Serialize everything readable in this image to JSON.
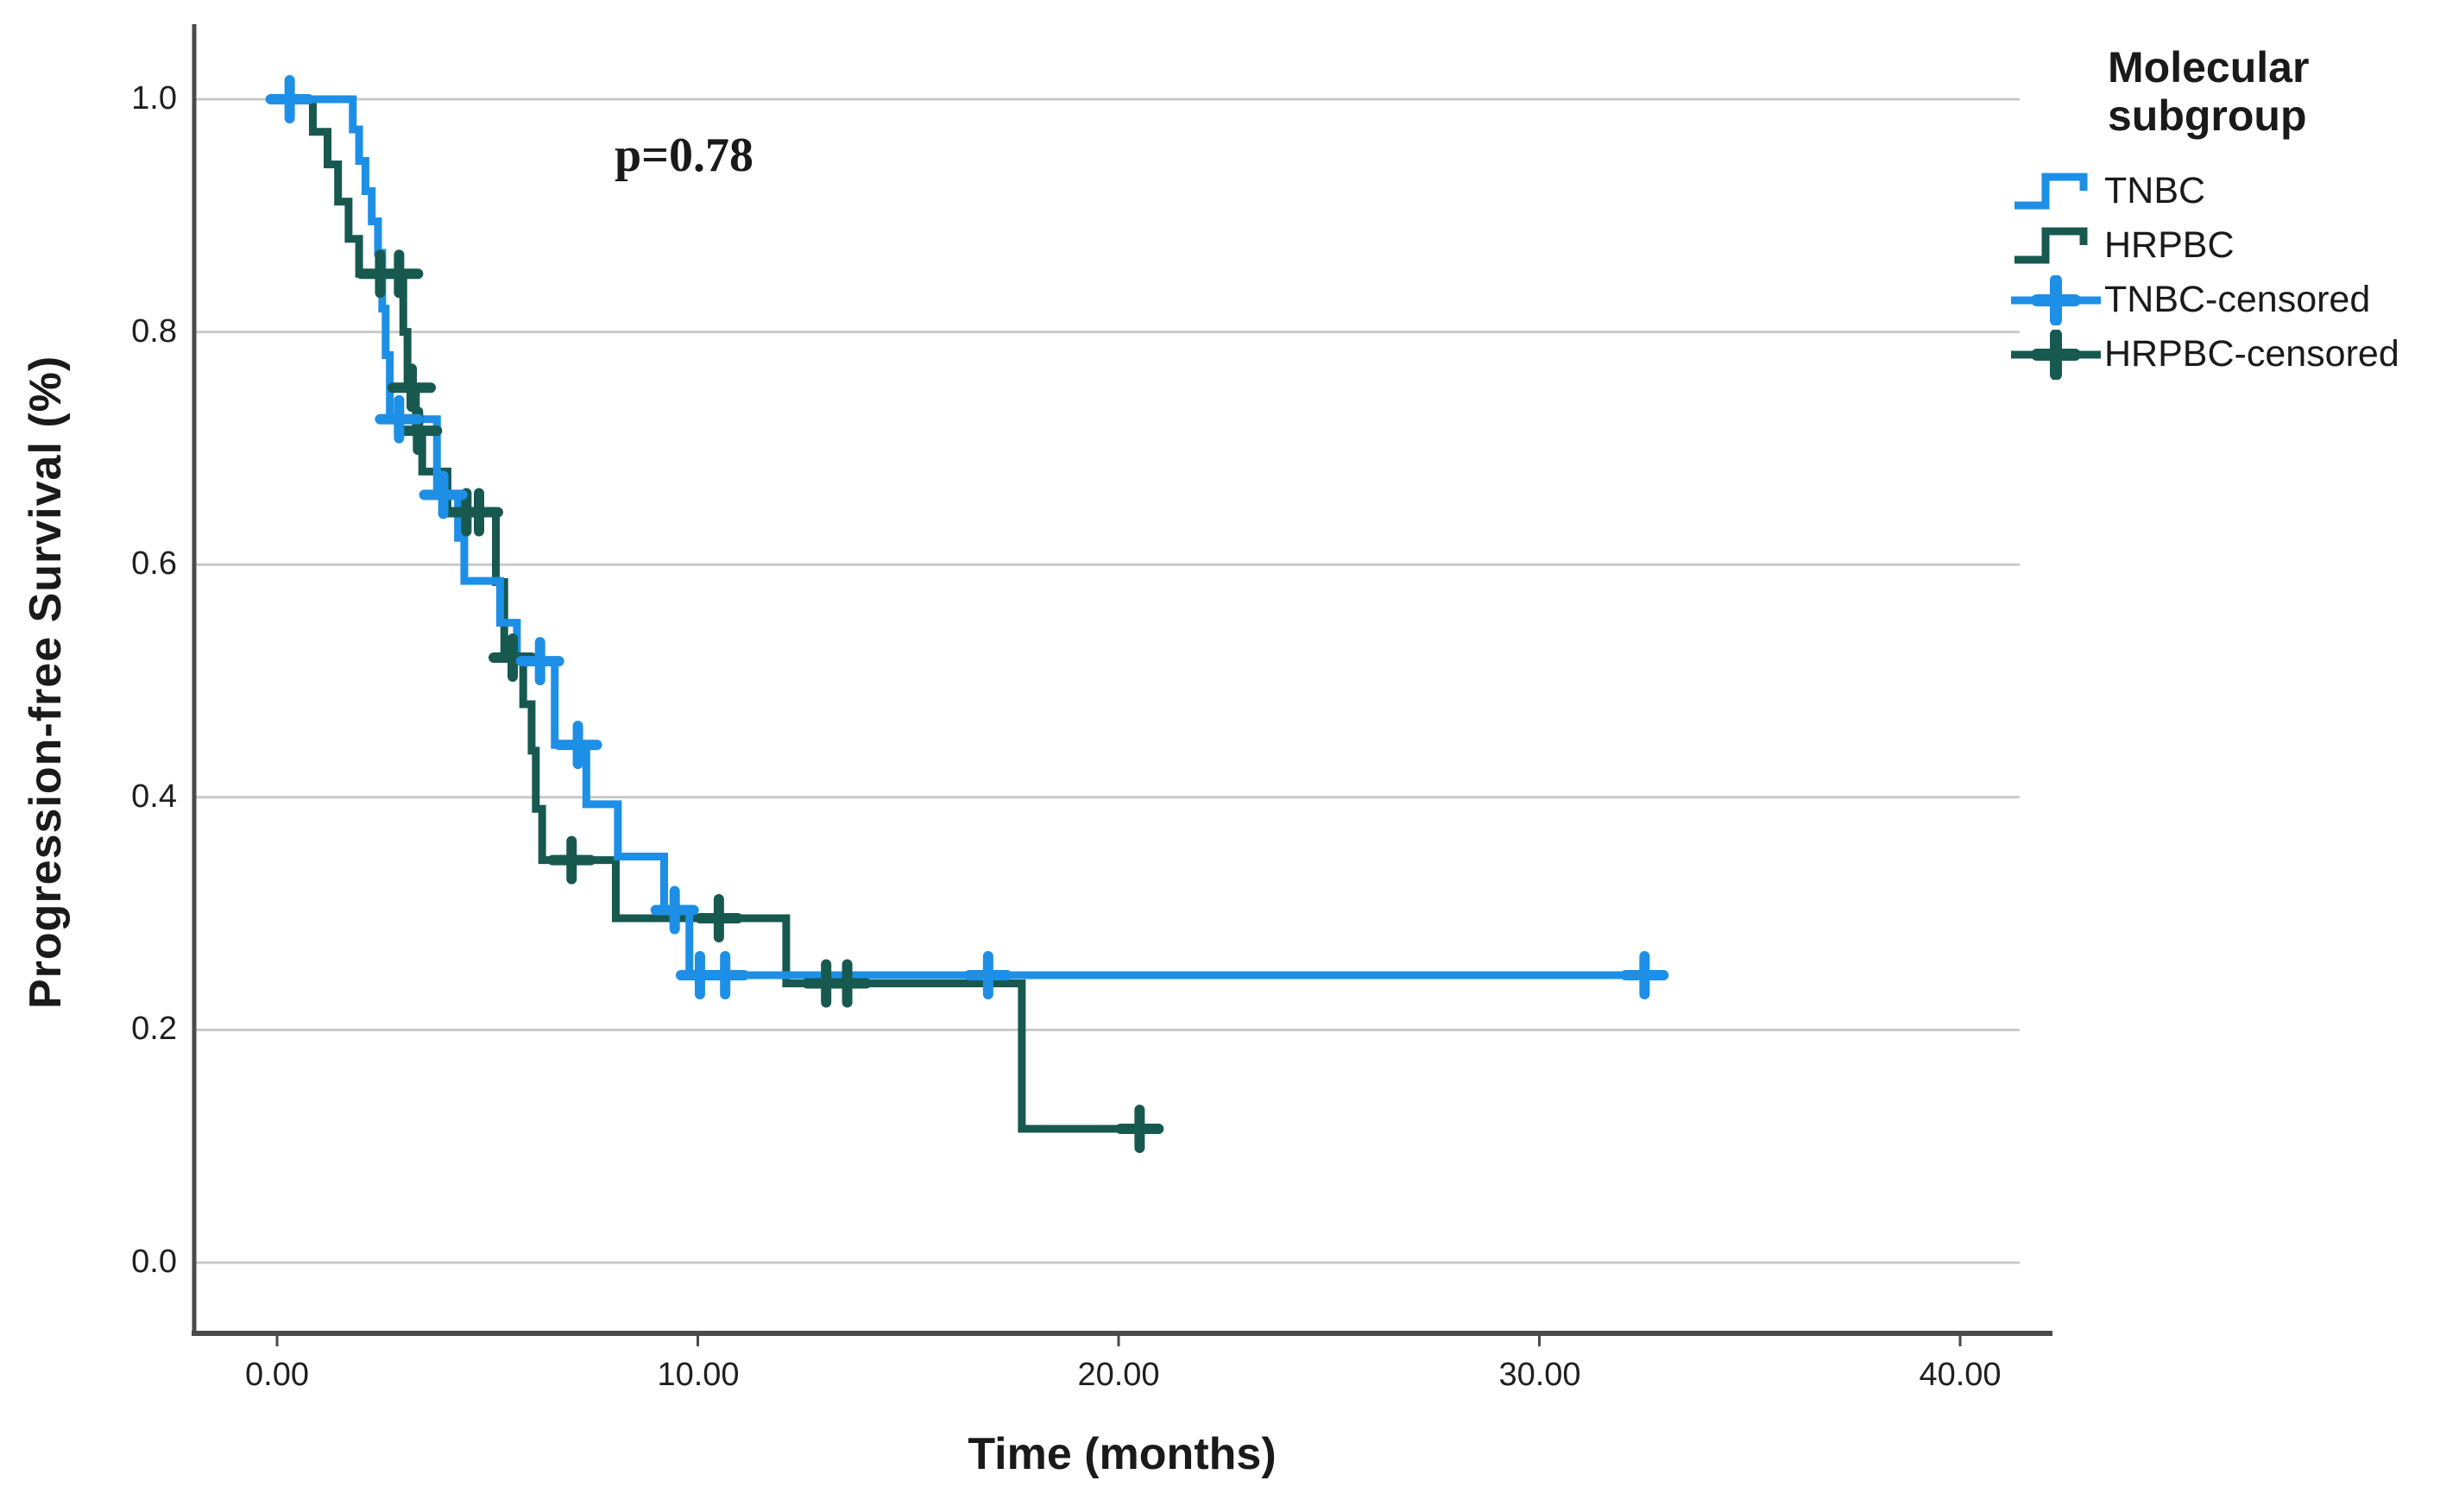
{
  "colors": {
    "grid": "#c9c9c9",
    "axis": "#4a4a4a",
    "text": "#1a1a1a",
    "tnbc": "#1E8FE6",
    "hrpbc": "#17594F"
  },
  "chart_data": {
    "type": "line",
    "subtype": "kaplan-meier-step",
    "annotation": "p=0.78",
    "xlabel": "Time (months)",
    "ylabel": "Progression-free Survival (%)",
    "xlim": [
      -2,
      42
    ],
    "ylim": [
      -0.06,
      1.06
    ],
    "grid": "horizontal",
    "x_ticks": [
      0,
      10,
      20,
      30,
      40
    ],
    "x_tick_labels": [
      "0.00",
      "10.00",
      "20.00",
      "30.00",
      "40.00"
    ],
    "y_ticks": [
      1.0,
      0.8,
      0.6,
      0.4,
      0.2,
      0.0
    ],
    "y_tick_labels": [
      "1.0",
      "0.8",
      "0.6",
      "0.4",
      "0.2",
      "0.0"
    ],
    "legend": {
      "title": "Molecular subgroup",
      "position": "right",
      "entries": [
        {
          "label": "TNBC",
          "type": "step-line",
          "series": "TNBC"
        },
        {
          "label": "HRPBC",
          "type": "step-line",
          "series": "HRPBC"
        },
        {
          "label": "TNBC-censored",
          "type": "plus-marker",
          "series": "TNBC"
        },
        {
          "label": "HRPBC-censored",
          "type": "plus-marker",
          "series": "HRPBC"
        }
      ]
    },
    "series": [
      {
        "name": "TNBC",
        "color": "#1E8FE6",
        "steps": [
          [
            0,
            1.0
          ],
          [
            1.8,
            0.974
          ],
          [
            1.95,
            0.947
          ],
          [
            2.1,
            0.921
          ],
          [
            2.25,
            0.895
          ],
          [
            2.4,
            0.868
          ],
          [
            2.5,
            0.82
          ],
          [
            2.58,
            0.78
          ],
          [
            2.68,
            0.725
          ],
          [
            3.8,
            0.66
          ],
          [
            4.3,
            0.623
          ],
          [
            4.45,
            0.586
          ],
          [
            5.3,
            0.55
          ],
          [
            5.7,
            0.517
          ],
          [
            6.6,
            0.445
          ],
          [
            7.35,
            0.394
          ],
          [
            8.1,
            0.349
          ],
          [
            9.2,
            0.303
          ],
          [
            9.8,
            0.247
          ],
          [
            32.55,
            0.247
          ]
        ],
        "censored": [
          [
            0.3,
            1.0
          ],
          [
            2.9,
            0.725
          ],
          [
            3.95,
            0.66
          ],
          [
            6.25,
            0.517
          ],
          [
            7.15,
            0.445
          ],
          [
            9.45,
            0.303
          ],
          [
            10.05,
            0.247
          ],
          [
            10.65,
            0.247
          ],
          [
            16.9,
            0.247
          ],
          [
            32.5,
            0.247
          ]
        ]
      },
      {
        "name": "HRPBC",
        "color": "#17594F",
        "steps": [
          [
            0,
            1.0
          ],
          [
            0.85,
            0.972
          ],
          [
            1.2,
            0.944
          ],
          [
            1.45,
            0.912
          ],
          [
            1.7,
            0.88
          ],
          [
            1.95,
            0.85
          ],
          [
            3.0,
            0.8
          ],
          [
            3.1,
            0.752
          ],
          [
            3.3,
            0.715
          ],
          [
            3.45,
            0.68
          ],
          [
            4.05,
            0.645
          ],
          [
            5.2,
            0.585
          ],
          [
            5.4,
            0.52
          ],
          [
            5.85,
            0.48
          ],
          [
            6.05,
            0.44
          ],
          [
            6.15,
            0.39
          ],
          [
            6.3,
            0.346
          ],
          [
            8.05,
            0.296
          ],
          [
            12.1,
            0.24
          ],
          [
            17.7,
            0.115
          ],
          [
            20.75,
            0.115
          ]
        ],
        "censored": [
          [
            2.45,
            0.85
          ],
          [
            2.9,
            0.85
          ],
          [
            3.2,
            0.752
          ],
          [
            3.35,
            0.715
          ],
          [
            4.5,
            0.645
          ],
          [
            4.8,
            0.645
          ],
          [
            5.6,
            0.52
          ],
          [
            7.0,
            0.346
          ],
          [
            10.5,
            0.296
          ],
          [
            13.05,
            0.24
          ],
          [
            13.55,
            0.24
          ],
          [
            20.5,
            0.115
          ]
        ]
      }
    ]
  }
}
